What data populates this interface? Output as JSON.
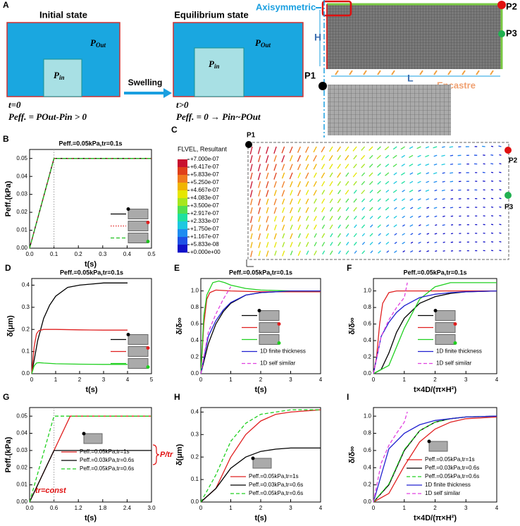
{
  "panel_a": {
    "label": "A",
    "initial": {
      "title": "Initial state",
      "p_out": {
        "base": "P",
        "sub": "Out"
      },
      "p_in": {
        "base": "P",
        "sub": "in"
      },
      "time": "t=0",
      "equation": "Peff. = POut-Pin > 0"
    },
    "arrow": "Swelling",
    "equilibrium": {
      "title": "Equilibrium state",
      "p_out": {
        "base": "P",
        "sub": "Out"
      },
      "p_in": {
        "base": "P",
        "sub": "in"
      },
      "time": "t>0",
      "equation": "Peff. = 0 → Pin~POut"
    },
    "model": {
      "axis": "Axisymmetric",
      "height": "H",
      "length": "L",
      "p1": "P1",
      "p2": "P2",
      "p3": "P3",
      "boundary": "Encastre"
    }
  },
  "panel_c": {
    "label": "C",
    "variable": "FLVEL, Resultant",
    "colorbar": {
      "colors": [
        "#c8102e",
        "#e0401a",
        "#f07a1e",
        "#f0b400",
        "#e6e600",
        "#a6e61e",
        "#50e050",
        "#1ee0a0",
        "#1ec8e0",
        "#1e8cf0",
        "#1e50e6",
        "#1010c8"
      ],
      "ticks": [
        {
          "value": 7e-07,
          "label": "+7.000e-07"
        },
        {
          "value": 6.417e-07,
          "label": "+6.417e-07"
        },
        {
          "value": 5.833e-07,
          "label": "+5.833e-07"
        },
        {
          "value": 5.25e-07,
          "label": "+5.250e-07"
        },
        {
          "value": 4.667e-07,
          "label": "+4.667e-07"
        },
        {
          "value": 4.083e-07,
          "label": "+4.083e-07"
        },
        {
          "value": 3.5e-07,
          "label": "+3.500e-07"
        },
        {
          "value": 2.917e-07,
          "label": "+2.917e-07"
        },
        {
          "value": 2.333e-07,
          "label": "+2.333e-07"
        },
        {
          "value": 1.75e-07,
          "label": "+1.750e-07"
        },
        {
          "value": 1.167e-07,
          "label": "+1.167e-07"
        },
        {
          "value": 5.833e-08,
          "label": "+5.833e-08"
        },
        {
          "value": 0,
          "label": "+0.000e+00"
        }
      ]
    },
    "points": [
      "P1",
      "P2",
      "P3"
    ]
  },
  "chart_data": [
    {
      "type": "line",
      "panel": "B",
      "title": "Peff.=0.05kPa,tr=0.1s",
      "xlabel": "t(s)",
      "ylabel": "Peff.(kPa)",
      "xlim": [
        0,
        0.5
      ],
      "ylim": [
        0,
        0.055
      ],
      "xticks": [
        {
          "value": 0,
          "label": "0.0"
        },
        0.1,
        0.2,
        0.3,
        0.4,
        0.5
      ],
      "yticks": [
        {
          "value": 0,
          "label": "0.00"
        },
        0.01,
        0.02,
        0.03,
        0.04,
        0.05
      ],
      "reference_x": 0.1,
      "legend": "lower right",
      "series": [
        {
          "color": "#000000",
          "dash": "solid",
          "x": [
            0,
            0.1,
            0.5
          ],
          "values": [
            0,
            0.05,
            0.05
          ]
        },
        {
          "color": "#e02020",
          "dash": "dotted",
          "x": [
            0,
            0.1,
            0.5
          ],
          "values": [
            0,
            0.05,
            0.05
          ]
        },
        {
          "color": "#20c020",
          "dash": "dashed",
          "x": [
            0,
            0.1,
            0.5
          ],
          "values": [
            0,
            0.05,
            0.05
          ]
        }
      ]
    },
    {
      "type": "line",
      "panel": "D",
      "title": "Peff.=0.05kPa,tr=0.1s",
      "xlabel": "t(s)",
      "ylabel": "δ(μm)",
      "xlim": [
        0,
        5
      ],
      "ylim": [
        0,
        0.43
      ],
      "xticks": [
        0,
        1,
        2,
        3,
        4,
        5
      ],
      "yticks": [
        {
          "value": 0,
          "label": "0.0"
        },
        0.1,
        0.2,
        0.3,
        0.4
      ],
      "legend": "lower right",
      "series": [
        {
          "color": "#000000",
          "dash": "solid",
          "x": [
            0,
            0.25,
            0.5,
            0.75,
            1,
            1.5,
            2,
            3,
            4
          ],
          "values": [
            0,
            0.15,
            0.25,
            0.31,
            0.35,
            0.39,
            0.4,
            0.41,
            0.41
          ]
        },
        {
          "color": "#e02020",
          "dash": "solid",
          "x": [
            0,
            0.1,
            0.2,
            0.3,
            0.5,
            1,
            2,
            3,
            4
          ],
          "values": [
            0,
            0.12,
            0.18,
            0.195,
            0.2,
            0.2,
            0.198,
            0.197,
            0.197
          ]
        },
        {
          "color": "#20d020",
          "dash": "solid",
          "x": [
            0,
            0.1,
            0.2,
            0.3,
            0.5,
            1,
            2,
            3,
            4
          ],
          "values": [
            0,
            0.035,
            0.048,
            0.05,
            0.048,
            0.045,
            0.043,
            0.042,
            0.042
          ]
        }
      ]
    },
    {
      "type": "line",
      "panel": "E",
      "title": "Peff.=0.05kPa,tr=0.1s",
      "xlabel": "t(s)",
      "ylabel": "δ/δ∞",
      "xlim": [
        0,
        4
      ],
      "ylim": [
        0,
        1.15
      ],
      "xticks": [
        0,
        1,
        2,
        3,
        4
      ],
      "yticks": [
        {
          "value": 0,
          "label": "0.0"
        },
        0.2,
        0.4,
        0.6,
        0.8,
        {
          "value": 1,
          "label": "1.0"
        }
      ],
      "legend": "lower right",
      "series": [
        {
          "color": "#000000",
          "dash": "solid",
          "x": [
            0,
            0.25,
            0.5,
            0.75,
            1,
            1.5,
            2,
            2.5,
            3,
            4
          ],
          "values": [
            0,
            0.36,
            0.6,
            0.75,
            0.85,
            0.95,
            0.98,
            0.99,
            1,
            1
          ]
        },
        {
          "color": "#e02020",
          "dash": "solid",
          "x": [
            0,
            0.1,
            0.2,
            0.3,
            0.5,
            1,
            2,
            3,
            4
          ],
          "values": [
            0,
            0.6,
            0.9,
            0.98,
            1.01,
            1.0,
            0.99,
            0.99,
            0.99
          ]
        },
        {
          "color": "#20d020",
          "dash": "solid",
          "x": [
            0,
            0.1,
            0.2,
            0.4,
            0.6,
            0.8,
            1,
            1.5,
            2,
            3,
            4
          ],
          "values": [
            0,
            0.7,
            0.95,
            1.1,
            1.12,
            1.1,
            1.07,
            1.03,
            1.01,
            1,
            1
          ]
        },
        {
          "name": "1D finite thickness",
          "color": "#2020d0",
          "dash": "solid",
          "x": [
            0,
            0.25,
            0.5,
            0.75,
            1,
            1.5,
            2,
            2.5,
            3,
            4
          ],
          "values": [
            0,
            0.45,
            0.64,
            0.77,
            0.86,
            0.95,
            0.98,
            0.99,
            1,
            1
          ]
        },
        {
          "name": "1D self similar",
          "color": "#e040e0",
          "dash": "dashed",
          "x": [
            0,
            0.25,
            0.5,
            0.75,
            1
          ],
          "values": [
            0,
            0.5,
            0.72,
            0.9,
            1.05
          ]
        }
      ]
    },
    {
      "type": "line",
      "panel": "F",
      "title": "Peff.=0.05kPa,tr=0.1s",
      "xlabel": "t×4D/(π×H²)",
      "ylabel": "δ/δ∞",
      "xlim": [
        0,
        4
      ],
      "ylim": [
        0,
        1.15
      ],
      "xticks": [
        0,
        1,
        2,
        3,
        4
      ],
      "yticks": [
        {
          "value": 0,
          "label": "0.0"
        },
        0.2,
        0.4,
        0.6,
        0.8,
        {
          "value": 1,
          "label": "1.0"
        }
      ],
      "legend": "lower right",
      "series": [
        {
          "color": "#000000",
          "dash": "solid",
          "x": [
            0,
            0.25,
            0.5,
            0.75,
            1,
            1.5,
            2,
            2.5,
            3,
            4
          ],
          "values": [
            0,
            0.05,
            0.25,
            0.5,
            0.67,
            0.85,
            0.93,
            0.97,
            0.99,
            1
          ]
        },
        {
          "color": "#e02020",
          "dash": "solid",
          "x": [
            0,
            0.1,
            0.2,
            0.3,
            0.5,
            0.75,
            1,
            2,
            4
          ],
          "values": [
            0,
            0.2,
            0.6,
            0.85,
            0.98,
            1.0,
            1.0,
            1.0,
            1.0
          ]
        },
        {
          "color": "#20d020",
          "dash": "solid",
          "x": [
            0,
            0.5,
            1,
            1.5,
            2,
            2.5,
            3,
            4
          ],
          "values": [
            0,
            0.1,
            0.55,
            0.9,
            1.05,
            1.1,
            1.1,
            1.1
          ]
        },
        {
          "name": "1D finite thickness",
          "color": "#2020d0",
          "dash": "solid",
          "x": [
            0,
            0.25,
            0.5,
            0.75,
            1,
            1.5,
            2,
            2.5,
            3,
            4
          ],
          "values": [
            0,
            0.45,
            0.62,
            0.74,
            0.82,
            0.92,
            0.96,
            0.98,
            0.99,
            1
          ]
        },
        {
          "name": "1D self similar",
          "color": "#e040e0",
          "dash": "dashed",
          "x": [
            0,
            0.25,
            0.5,
            0.75,
            1,
            1.1
          ],
          "values": [
            0,
            0.45,
            0.65,
            0.8,
            0.92,
            1.1
          ]
        }
      ]
    },
    {
      "type": "line",
      "panel": "G",
      "xlabel": "t(s)",
      "ylabel": "Peff.(kPa)",
      "xlim": [
        0,
        3
      ],
      "ylim": [
        0,
        0.055
      ],
      "xticks": [
        {
          "value": 0,
          "label": "0.0"
        },
        0.6,
        1.2,
        1.8,
        2.4,
        {
          "value": 3,
          "label": "3.0"
        }
      ],
      "yticks": [
        {
          "value": 0,
          "label": "0.00"
        },
        0.01,
        0.02,
        0.03,
        0.04,
        0.05
      ],
      "reference_x": 0.6,
      "legend": "center right",
      "annotations": [
        "tr=const",
        "P/tr"
      ],
      "series": [
        {
          "name": "Peff.=0.05kPa,tr=1s",
          "color": "#e02020",
          "dash": "solid",
          "x": [
            0,
            1,
            3
          ],
          "values": [
            0,
            0.05,
            0.05
          ]
        },
        {
          "name": "Peff.=0.03kPa,tr=0.6s",
          "color": "#000000",
          "dash": "solid",
          "x": [
            0,
            0.6,
            3
          ],
          "values": [
            0,
            0.03,
            0.03
          ]
        },
        {
          "name": "Peff.=0.05kPa,tr=0.6s",
          "color": "#20d020",
          "dash": "dashed",
          "x": [
            0,
            0.6,
            3
          ],
          "values": [
            0,
            0.05,
            0.05
          ]
        }
      ]
    },
    {
      "type": "line",
      "panel": "H",
      "xlabel": "t(s)",
      "ylabel": "δ(μm)",
      "xlim": [
        0,
        4
      ],
      "ylim": [
        0,
        0.42
      ],
      "xticks": [
        0,
        1,
        2,
        3,
        4
      ],
      "yticks": [
        {
          "value": 0,
          "label": "0.0"
        },
        0.1,
        0.2,
        0.3,
        0.4
      ],
      "legend": "lower right",
      "series": [
        {
          "name": "Peff.=0.05kPa,tr=1s",
          "color": "#e02020",
          "dash": "solid",
          "x": [
            0,
            0.5,
            1,
            1.5,
            2,
            2.5,
            3,
            4
          ],
          "values": [
            0,
            0.06,
            0.2,
            0.3,
            0.36,
            0.39,
            0.4,
            0.41
          ]
        },
        {
          "name": "Peff.=0.03kPa,tr=0.6s",
          "color": "#000000",
          "dash": "solid",
          "x": [
            0,
            0.5,
            1,
            1.5,
            2,
            2.5,
            3,
            4
          ],
          "values": [
            0,
            0.06,
            0.15,
            0.2,
            0.225,
            0.235,
            0.24,
            0.24
          ]
        },
        {
          "name": "Peff.=0.05kPa,tr=0.6s",
          "color": "#20d020",
          "dash": "dashed",
          "x": [
            0,
            0.5,
            1,
            1.5,
            2,
            2.5,
            3,
            4
          ],
          "values": [
            0,
            0.12,
            0.27,
            0.35,
            0.39,
            0.4,
            0.41,
            0.41
          ]
        }
      ]
    },
    {
      "type": "line",
      "panel": "I",
      "xlabel": "t×4D/(π×H²)",
      "ylabel": "δ/δ∞",
      "xlim": [
        0,
        4
      ],
      "ylim": [
        0,
        1.1
      ],
      "xticks": [
        0,
        1,
        2,
        3,
        4
      ],
      "yticks": [
        {
          "value": 0,
          "label": "0.0"
        },
        0.2,
        0.4,
        0.6,
        0.8,
        {
          "value": 1,
          "label": "1.0"
        }
      ],
      "legend": "lower right",
      "series": [
        {
          "name": "Peff.=0.05kPa,tr=1s",
          "color": "#e02020",
          "dash": "solid",
          "x": [
            0,
            0.5,
            1,
            1.5,
            2,
            2.5,
            3,
            4
          ],
          "values": [
            0,
            0.1,
            0.42,
            0.7,
            0.85,
            0.93,
            0.97,
            0.99
          ]
        },
        {
          "name": "Peff.=0.03kPa,tr=0.6s",
          "color": "#000000",
          "dash": "solid",
          "x": [
            0,
            0.5,
            1,
            1.5,
            2,
            2.5,
            3,
            4
          ],
          "values": [
            0,
            0.2,
            0.6,
            0.83,
            0.93,
            0.97,
            0.99,
            1
          ]
        },
        {
          "name": "Peff.=0.05kPa,tr=0.6s",
          "color": "#20d020",
          "dash": "dashed",
          "x": [
            0,
            0.5,
            1,
            1.5,
            2,
            2.5,
            3,
            4
          ],
          "values": [
            0,
            0.21,
            0.61,
            0.83,
            0.93,
            0.97,
            0.99,
            1
          ]
        },
        {
          "name": "1D finite thickness",
          "color": "#2020d0",
          "dash": "solid",
          "x": [
            0,
            0.5,
            1,
            1.5,
            2,
            2.5,
            3,
            4
          ],
          "values": [
            0,
            0.62,
            0.8,
            0.9,
            0.95,
            0.97,
            0.99,
            1
          ]
        },
        {
          "name": "1D self similar",
          "color": "#e040e0",
          "dash": "dashed",
          "x": [
            0,
            0.25,
            0.5,
            0.75,
            1,
            1.1
          ],
          "values": [
            0,
            0.45,
            0.66,
            0.8,
            0.93,
            1.05
          ]
        }
      ]
    }
  ]
}
